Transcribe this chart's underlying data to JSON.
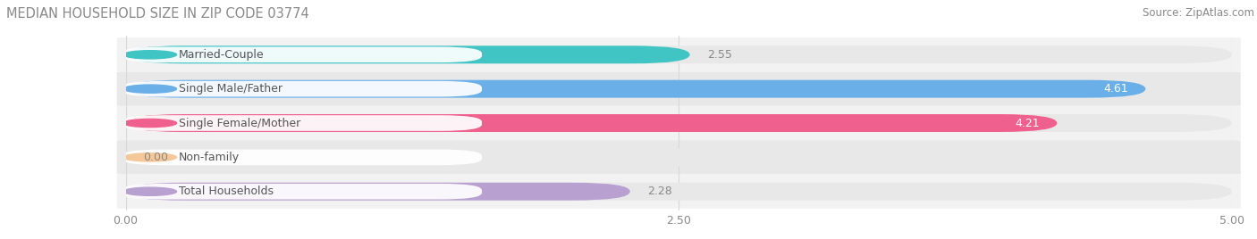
{
  "title": "MEDIAN HOUSEHOLD SIZE IN ZIP CODE 03774",
  "source": "Source: ZipAtlas.com",
  "categories": [
    "Married-Couple",
    "Single Male/Father",
    "Single Female/Mother",
    "Non-family",
    "Total Households"
  ],
  "values": [
    2.55,
    4.61,
    4.21,
    0.0,
    2.28
  ],
  "bar_colors": [
    "#40c4c4",
    "#6aafe8",
    "#f0608e",
    "#f5c899",
    "#b8a0d0"
  ],
  "xlim": [
    0,
    5.0
  ],
  "xticks": [
    0.0,
    2.5,
    5.0
  ],
  "xtick_labels": [
    "0.00",
    "2.50",
    "5.00"
  ],
  "title_fontsize": 10.5,
  "source_fontsize": 8.5,
  "label_fontsize": 9,
  "value_fontsize": 9,
  "background_color": "#ffffff",
  "bar_height": 0.52,
  "track_color": "#e8e8e8",
  "row_bg_even": "#f2f2f2",
  "row_bg_odd": "#e8e8e8",
  "grid_color": "#d8d8d8",
  "label_box_color": "#ffffff",
  "label_text_color": "#555555",
  "value_inside_color": "#ffffff",
  "value_outside_color": "#888888"
}
